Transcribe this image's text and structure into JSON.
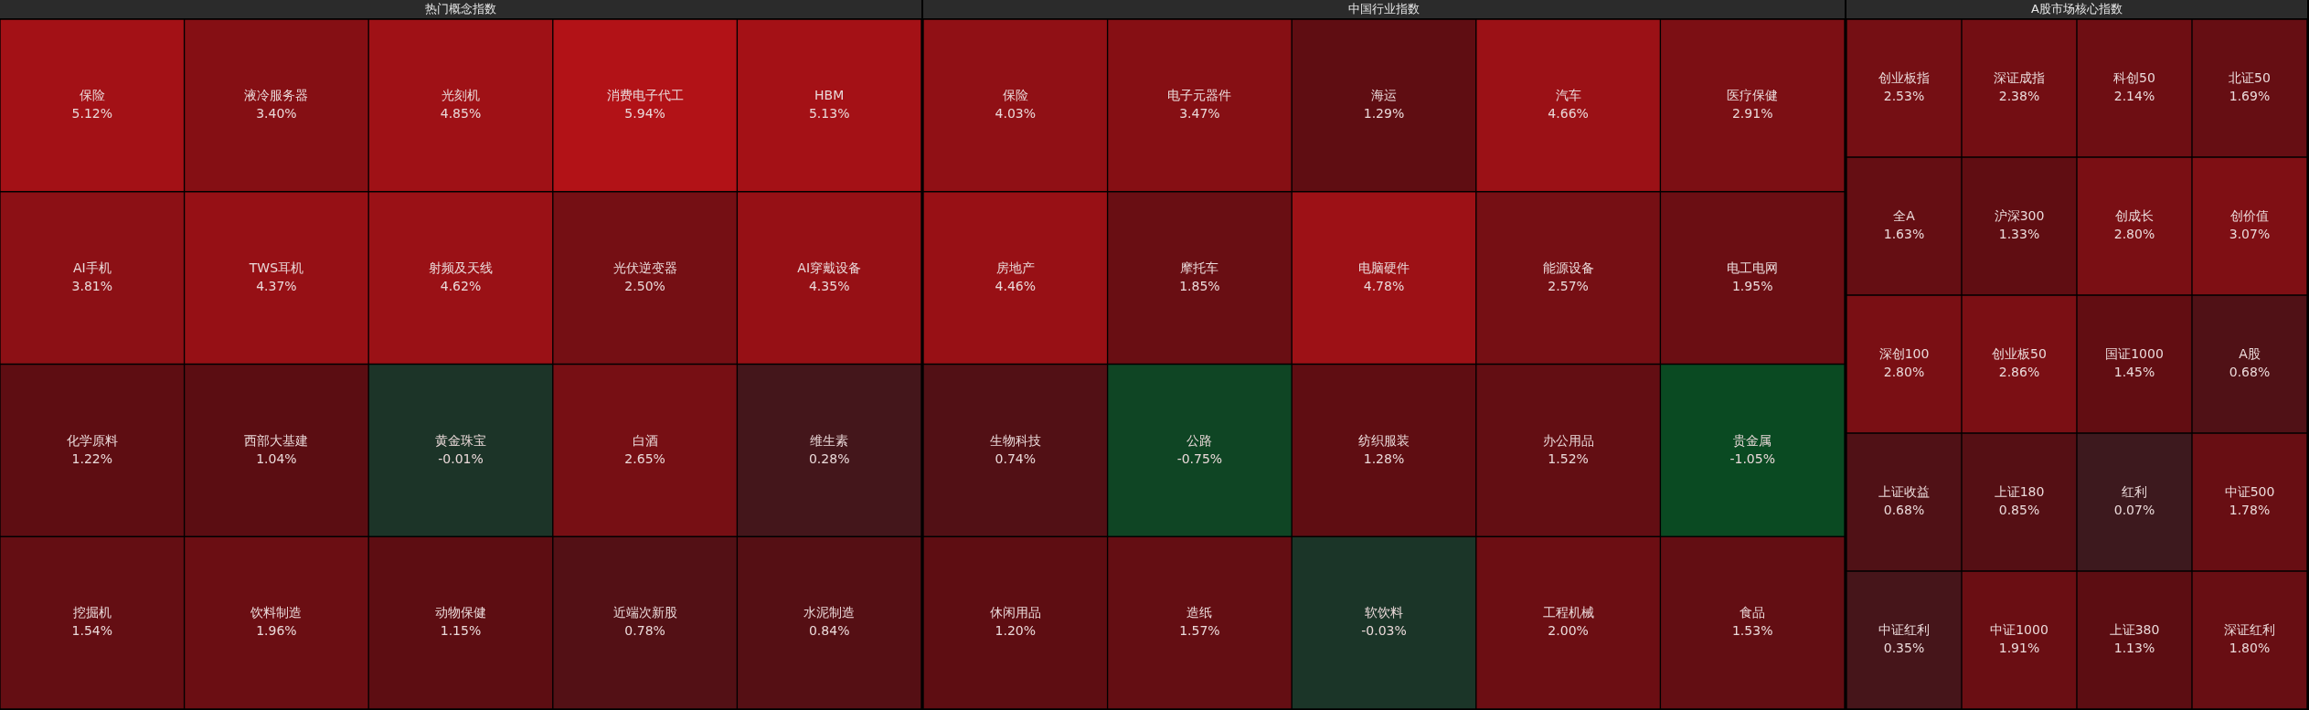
{
  "chart_data": [
    {
      "type": "other",
      "title": "热门概念指数",
      "categories": [
        "保险",
        "液冷服务器",
        "光刻机",
        "消费电子代工",
        "HBM",
        "AI手机",
        "TWS耳机",
        "射频及天线",
        "光伏逆变器",
        "AI穿戴设备",
        "化学原料",
        "西部大基建",
        "黄金珠宝",
        "白酒",
        "维生素",
        "挖掘机",
        "饮料制造",
        "动物保健",
        "近端次新股",
        "水泥制造"
      ],
      "values": [
        5.12,
        3.4,
        4.85,
        5.94,
        5.13,
        3.81,
        4.37,
        4.62,
        2.5,
        4.35,
        1.22,
        1.04,
        -0.01,
        2.65,
        0.28,
        1.54,
        1.96,
        1.15,
        0.78,
        0.84
      ],
      "value_labels": [
        "5.12%",
        "3.40%",
        "4.85%",
        "5.94%",
        "5.13%",
        "3.81%",
        "4.37%",
        "4.62%",
        "2.50%",
        "4.35%",
        "1.22%",
        "1.04%",
        "-0.01%",
        "2.65%",
        "0.28%",
        "1.54%",
        "1.96%",
        "1.15%",
        "0.78%",
        "0.84%"
      ]
    },
    {
      "type": "other",
      "title": "中国行业指数",
      "categories": [
        "保险",
        "电子元器件",
        "海运",
        "汽车",
        "医疗保健",
        "房地产",
        "摩托车",
        "电脑硬件",
        "能源设备",
        "电工电网",
        "生物科技",
        "公路",
        "纺织服装",
        "办公用品",
        "贵金属",
        "休闲用品",
        "造纸",
        "软饮料",
        "工程机械",
        "食品"
      ],
      "values": [
        4.03,
        3.47,
        1.29,
        4.66,
        2.91,
        4.46,
        1.85,
        4.78,
        2.57,
        1.95,
        0.74,
        -0.75,
        1.28,
        1.52,
        -1.05,
        1.2,
        1.57,
        -0.03,
        2.0,
        1.53
      ],
      "value_labels": [
        "4.03%",
        "3.47%",
        "1.29%",
        "4.66%",
        "2.91%",
        "4.46%",
        "1.85%",
        "4.78%",
        "2.57%",
        "1.95%",
        "0.74%",
        "-0.75%",
        "1.28%",
        "1.52%",
        "-1.05%",
        "1.20%",
        "1.57%",
        "-0.03%",
        "2.00%",
        "1.53%"
      ]
    },
    {
      "type": "other",
      "title": "A股市场核心指数",
      "categories": [
        "创业板指",
        "深证成指",
        "科创50",
        "北证50",
        "全A",
        "沪深300",
        "创成长",
        "创价值",
        "深创100",
        "创业板50",
        "国证1000",
        "A股",
        "上证收益",
        "上证180",
        "红利",
        "中证500",
        "中证红利",
        "中证1000",
        "上证380",
        "深证红利"
      ],
      "values": [
        2.53,
        2.38,
        2.14,
        1.69,
        1.63,
        1.33,
        2.8,
        3.07,
        2.8,
        2.86,
        1.45,
        0.68,
        0.68,
        0.85,
        0.07,
        1.78,
        0.35,
        1.91,
        1.13,
        1.8
      ],
      "value_labels": [
        "2.53%",
        "2.38%",
        "2.14%",
        "1.69%",
        "1.63%",
        "1.33%",
        "2.80%",
        "3.07%",
        "2.80%",
        "2.86%",
        "1.45%",
        "0.68%",
        "0.68%",
        "0.85%",
        "0.07%",
        "1.78%",
        "0.35%",
        "1.91%",
        "1.13%",
        "1.80%"
      ]
    }
  ]
}
